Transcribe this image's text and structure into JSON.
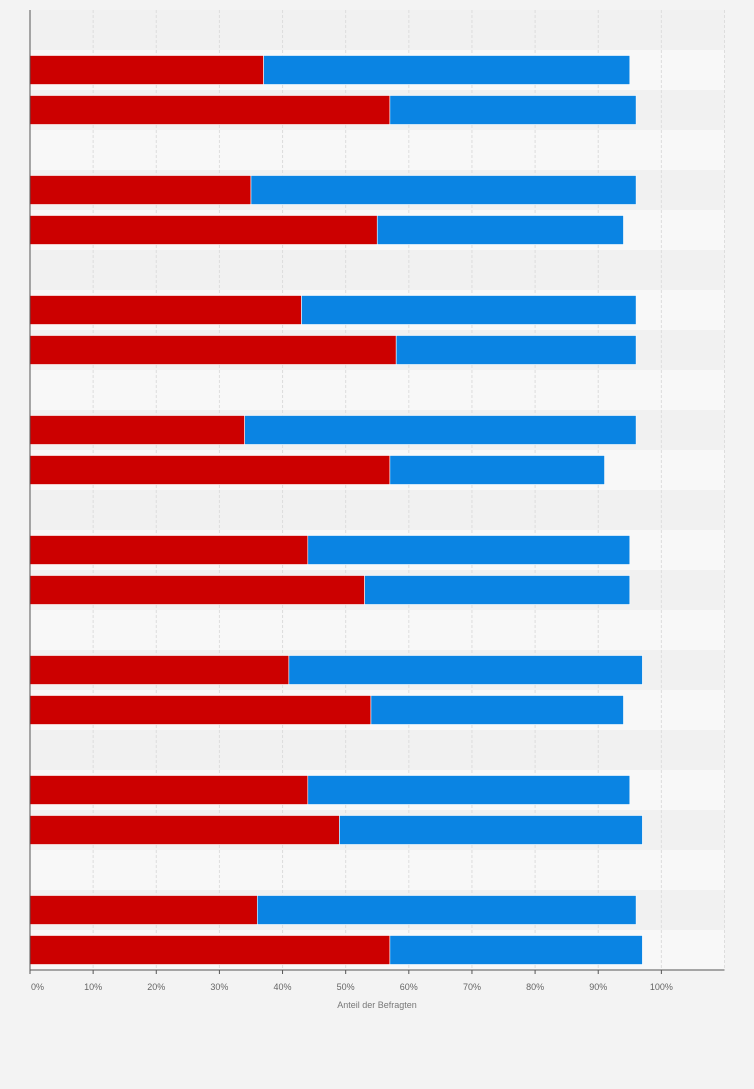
{
  "chart_data": {
    "type": "bar",
    "orientation": "horizontal",
    "stacked": true,
    "xlabel": "Anteil der Befragten",
    "xlim": [
      0,
      110
    ],
    "x_ticks": [
      0,
      10,
      20,
      30,
      40,
      50,
      60,
      70,
      80,
      90,
      100
    ],
    "x_tick_labels": [
      "0%",
      "10%",
      "20%",
      "30%",
      "40%",
      "50%",
      "60%",
      "70%",
      "80%",
      "90%",
      "100%"
    ],
    "grid": true,
    "legend": "none",
    "groups": 8,
    "bars_per_group": 2,
    "series": [
      {
        "color": "#cc0000",
        "values": [
          37,
          57,
          35,
          55,
          43,
          58,
          34,
          57,
          44,
          53,
          41,
          54,
          44,
          49,
          36,
          57
        ]
      },
      {
        "color": "#0a84e3",
        "values": [
          58,
          39,
          61,
          39,
          53,
          38,
          62,
          34,
          51,
          42,
          56,
          40,
          51,
          48,
          60,
          40
        ]
      }
    ]
  },
  "colors": {
    "background": "#f3f3f3",
    "plot_band_light": "#f8f8f8",
    "plot_band_dark": "#f1f1f1",
    "grid": "#dddddd",
    "axis": "#555555"
  }
}
